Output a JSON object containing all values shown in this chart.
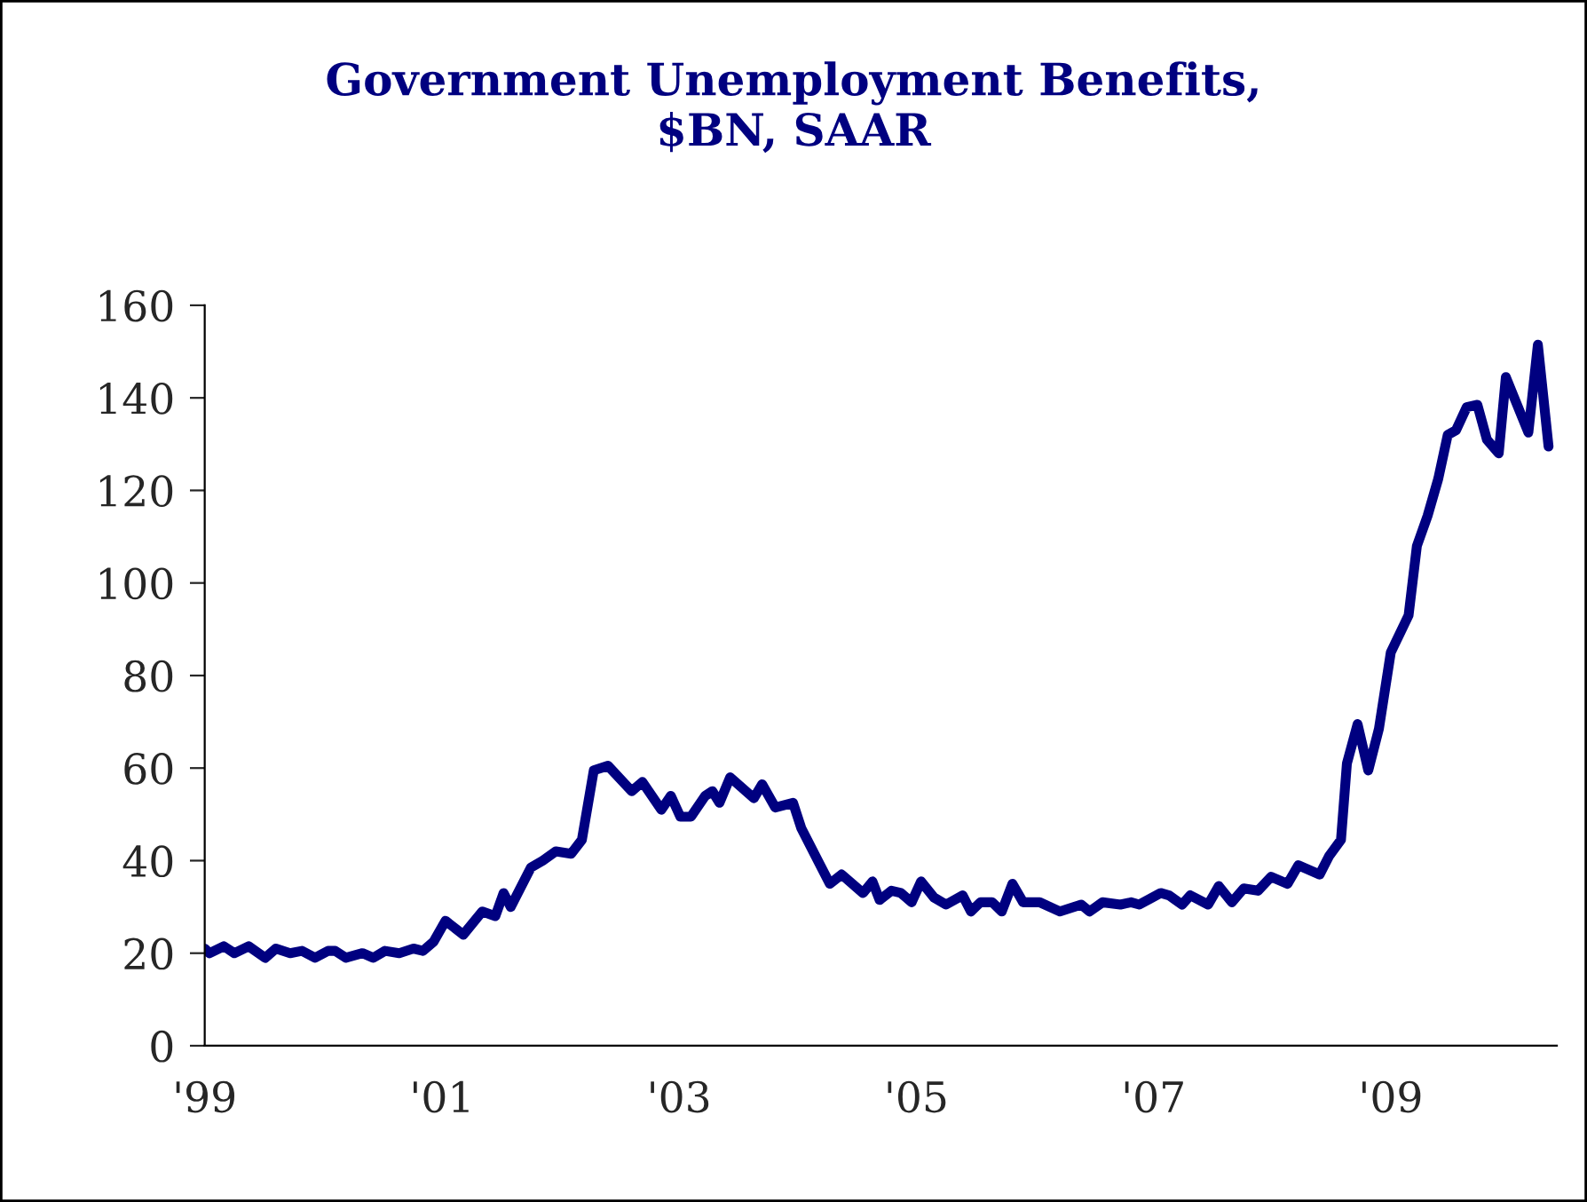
{
  "chart_data": {
    "type": "line",
    "title": "Government Unemployment Benefits,\n$BN, SAAR",
    "x": [
      1999.0,
      1999.04,
      1999.16,
      1999.25,
      1999.37,
      1999.51,
      1999.6,
      1999.72,
      1999.82,
      1999.93,
      2000.04,
      2000.1,
      2000.19,
      2000.33,
      2000.42,
      2000.52,
      2000.64,
      2000.76,
      2000.84,
      2000.93,
      2001.03,
      2001.18,
      2001.34,
      2001.45,
      2001.52,
      2001.58,
      2001.75,
      2001.85,
      2001.96,
      2002.09,
      2002.18,
      2002.28,
      2002.4,
      2002.6,
      2002.69,
      2002.85,
      2002.93,
      2003.01,
      2003.1,
      2003.22,
      2003.28,
      2003.34,
      2003.43,
      2003.63,
      2003.7,
      2003.81,
      2003.96,
      2004.03,
      2004.19,
      2004.27,
      2004.37,
      2004.55,
      2004.63,
      2004.69,
      2004.79,
      2004.87,
      2004.96,
      2005.04,
      2005.15,
      2005.25,
      2005.39,
      2005.46,
      2005.54,
      2005.64,
      2005.72,
      2005.81,
      2005.9,
      2006.04,
      2006.21,
      2006.39,
      2006.46,
      2006.57,
      2006.72,
      2006.81,
      2006.88,
      2007.06,
      2007.13,
      2007.24,
      2007.31,
      2007.46,
      2007.55,
      2007.66,
      2007.76,
      2007.88,
      2007.99,
      2008.13,
      2008.22,
      2008.4,
      2008.48,
      2008.58,
      2008.63,
      2008.72,
      2008.81,
      2008.9,
      2009.0,
      2009.15,
      2009.22,
      2009.31,
      2009.4,
      2009.48,
      2009.55,
      2009.64,
      2009.73,
      2009.81,
      2009.91,
      2009.97,
      2010.16,
      2010.24,
      2010.33
    ],
    "series": [
      {
        "color": "#000080",
        "values": [
          21,
          20,
          21.5,
          20,
          21.5,
          19,
          21,
          20,
          20.5,
          19,
          20.5,
          20.5,
          19,
          20,
          19,
          20.5,
          20,
          21,
          20.5,
          22.5,
          27,
          24,
          29,
          28,
          33,
          30,
          38.5,
          40,
          42,
          41.5,
          44.5,
          59.5,
          60.5,
          55,
          57,
          51,
          54,
          49.5,
          49.5,
          54,
          55,
          52.5,
          58,
          53.5,
          56.5,
          51.5,
          52.5,
          47,
          39,
          35,
          37,
          33,
          35.5,
          31.5,
          33.5,
          33,
          31,
          35.5,
          32,
          30.5,
          32.5,
          29,
          31,
          31,
          29,
          35,
          31,
          31,
          29,
          30.5,
          29,
          31,
          30.5,
          31,
          30.5,
          33,
          32.5,
          30.5,
          32.5,
          30.5,
          34.5,
          31,
          34,
          33.5,
          36.5,
          35,
          39,
          37,
          41,
          44.5,
          61,
          69.5,
          59.5,
          68.5,
          85,
          93,
          108,
          114.5,
          122.5,
          132,
          133,
          138,
          138.5,
          131,
          128,
          144.5,
          132.5,
          151.5,
          129.5
        ]
      }
    ],
    "xlim": [
      1999,
      2010.4
    ],
    "xticks": [
      {
        "value": 1999,
        "label": "'99"
      },
      {
        "value": 2001,
        "label": "'01"
      },
      {
        "value": 2003,
        "label": "'03"
      },
      {
        "value": 2005,
        "label": "'05"
      },
      {
        "value": 2007,
        "label": "'07"
      },
      {
        "value": 2009,
        "label": "'09"
      }
    ],
    "ylim": [
      0,
      160
    ],
    "yticks": [
      0,
      20,
      40,
      60,
      80,
      100,
      120,
      140,
      160
    ],
    "grid": false,
    "legend": false,
    "line_style": "solid",
    "marker": "none"
  }
}
